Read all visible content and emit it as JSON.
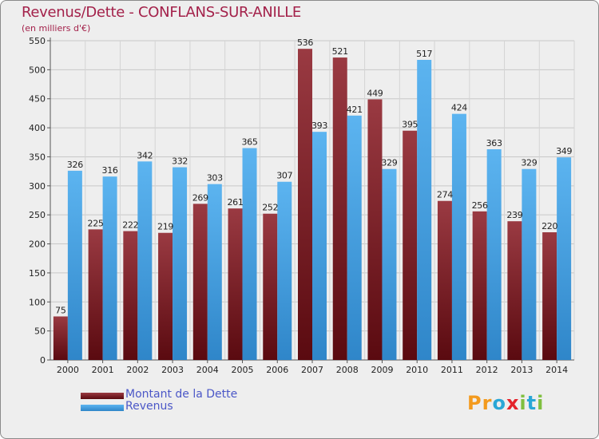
{
  "title": "Revenus/Dette - CONFLANS-SUR-ANILLE",
  "subtitle": "(en milliers d'€)",
  "brand": {
    "text": "Proxiti",
    "letters": [
      "P",
      "r",
      "o",
      "x",
      "i",
      "t",
      "i"
    ],
    "colors": [
      "#f39a1d",
      "#f39a1d",
      "#2aa7d6",
      "#e4232b",
      "#7fbf3f",
      "#2aa7d6",
      "#7fbf3f"
    ]
  },
  "colors": {
    "dette": "#7a1a1e",
    "revenus": "#4fa6e6",
    "title": "#a3214a",
    "legend_text": "#4b57c7"
  },
  "legend": [
    {
      "label": "Montant de la Dette",
      "color": "#7a1a1e"
    },
    {
      "label": "Revenus",
      "color": "#4fa6e6"
    }
  ],
  "chart_data": {
    "type": "bar",
    "title": "Revenus/Dette - CONFLANS-SUR-ANILLE",
    "subtitle": "(en milliers d'€)",
    "xlabel": "",
    "ylabel": "",
    "categories": [
      "2000",
      "2001",
      "2002",
      "2003",
      "2004",
      "2005",
      "2006",
      "2007",
      "2008",
      "2009",
      "2010",
      "2011",
      "2012",
      "2013",
      "2014"
    ],
    "series": [
      {
        "name": "Montant de la Dette",
        "color": "#7a1a1e",
        "values": [
          75,
          225,
          222,
          219,
          269,
          261,
          252,
          536,
          521,
          449,
          395,
          274,
          256,
          239,
          220
        ]
      },
      {
        "name": "Revenus",
        "color": "#4fa6e6",
        "values": [
          326,
          316,
          342,
          332,
          303,
          365,
          307,
          393,
          421,
          329,
          517,
          424,
          363,
          329,
          349
        ]
      }
    ],
    "ylim": [
      0,
      550
    ],
    "yticks": [
      0,
      50,
      100,
      150,
      200,
      250,
      300,
      350,
      400,
      450,
      500,
      550
    ],
    "grid": true,
    "legend_position": "bottom-left"
  }
}
